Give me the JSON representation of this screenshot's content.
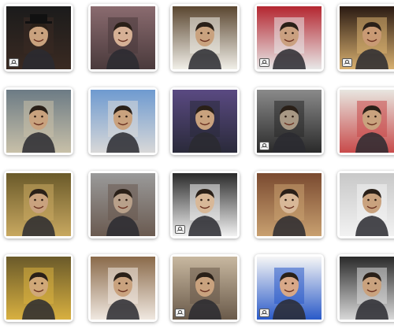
{
  "gallery": {
    "tiles": [
      {
        "name": "tile-man-with-hat-and-cat",
        "bg": "#1b1b1b",
        "accent": "#3a2a22",
        "skin": "#c9a27e",
        "badge": true,
        "hat": true
      },
      {
        "name": "tile-woman-on-phone",
        "bg": "#8a6b6f",
        "accent": "#4a3a3c",
        "skin": "#d6b095",
        "badge": false
      },
      {
        "name": "tile-face-on-mug",
        "bg": "#5a4630",
        "accent": "#f1efe8",
        "skin": "#c9a27e",
        "badge": false
      },
      {
        "name": "tile-man-holding-tv",
        "bg": "#b42630",
        "accent": "#e8e8e8",
        "skin": "#caa080",
        "badge": true
      },
      {
        "name": "tile-carnival-dancer",
        "bg": "#2a1a12",
        "accent": "#d8b070",
        "skin": "#c99a74",
        "badge": true
      },
      {
        "name": "tile-street-billboard",
        "bg": "#6c7b85",
        "accent": "#c8c0a8",
        "skin": "#c9a27e",
        "badge": false
      },
      {
        "name": "tile-skyscraper-billboard",
        "bg": "#6e9ad0",
        "accent": "#d8d8d8",
        "skin": "#c9a27e",
        "badge": false
      },
      {
        "name": "tile-storm-billboard",
        "bg": "#5a4a82",
        "accent": "#2a2a3a",
        "skin": "#c9a27e",
        "badge": false
      },
      {
        "name": "tile-pirate",
        "bg": "#8a8a8a",
        "accent": "#2a2a2a",
        "skin": "#a89884",
        "badge": true
      },
      {
        "name": "tile-pop-art-gallery",
        "bg": "#e8e6e0",
        "accent": "#c84a4a",
        "skin": "#c9a27e",
        "badge": false
      },
      {
        "name": "tile-ancient-painting",
        "bg": "#6a5a2a",
        "accent": "#c8a860",
        "skin": "#c9a27e",
        "badge": false
      },
      {
        "name": "tile-wall-mural",
        "bg": "#9a9a9a",
        "accent": "#6a5a50",
        "skin": "#b8a08a",
        "badge": false
      },
      {
        "name": "tile-bride",
        "bg": "#2a2a2a",
        "accent": "#f2f2f2",
        "skin": "#d8b898",
        "badge": true
      },
      {
        "name": "tile-girl-with-portrait",
        "bg": "#7a4a30",
        "accent": "#c8a070",
        "skin": "#d8b898",
        "badge": false
      },
      {
        "name": "tile-car-wrap",
        "bg": "#c8c8c8",
        "accent": "#f2f2f2",
        "skin": "#c9a27e",
        "badge": false
      },
      {
        "name": "tile-framed-mosaic",
        "bg": "#6a5a2a",
        "accent": "#d8b040",
        "skin": "#d0a878",
        "badge": false
      },
      {
        "name": "tile-hands-with-photos",
        "bg": "#8a6a4a",
        "accent": "#f0e8e0",
        "skin": "#c9a27e",
        "badge": false
      },
      {
        "name": "tile-cats-watching-tv",
        "bg": "#c8b8a0",
        "accent": "#6a5a4a",
        "skin": "#c9a27e",
        "badge": true
      },
      {
        "name": "tile-superman",
        "bg": "#f6f6f6",
        "accent": "#2a5ac8",
        "skin": "#d8a888",
        "badge": true
      },
      {
        "name": "tile-silver-frame",
        "bg": "#2a2a2a",
        "accent": "#d8d8d8",
        "skin": "#c9a27e",
        "badge": false
      }
    ]
  }
}
